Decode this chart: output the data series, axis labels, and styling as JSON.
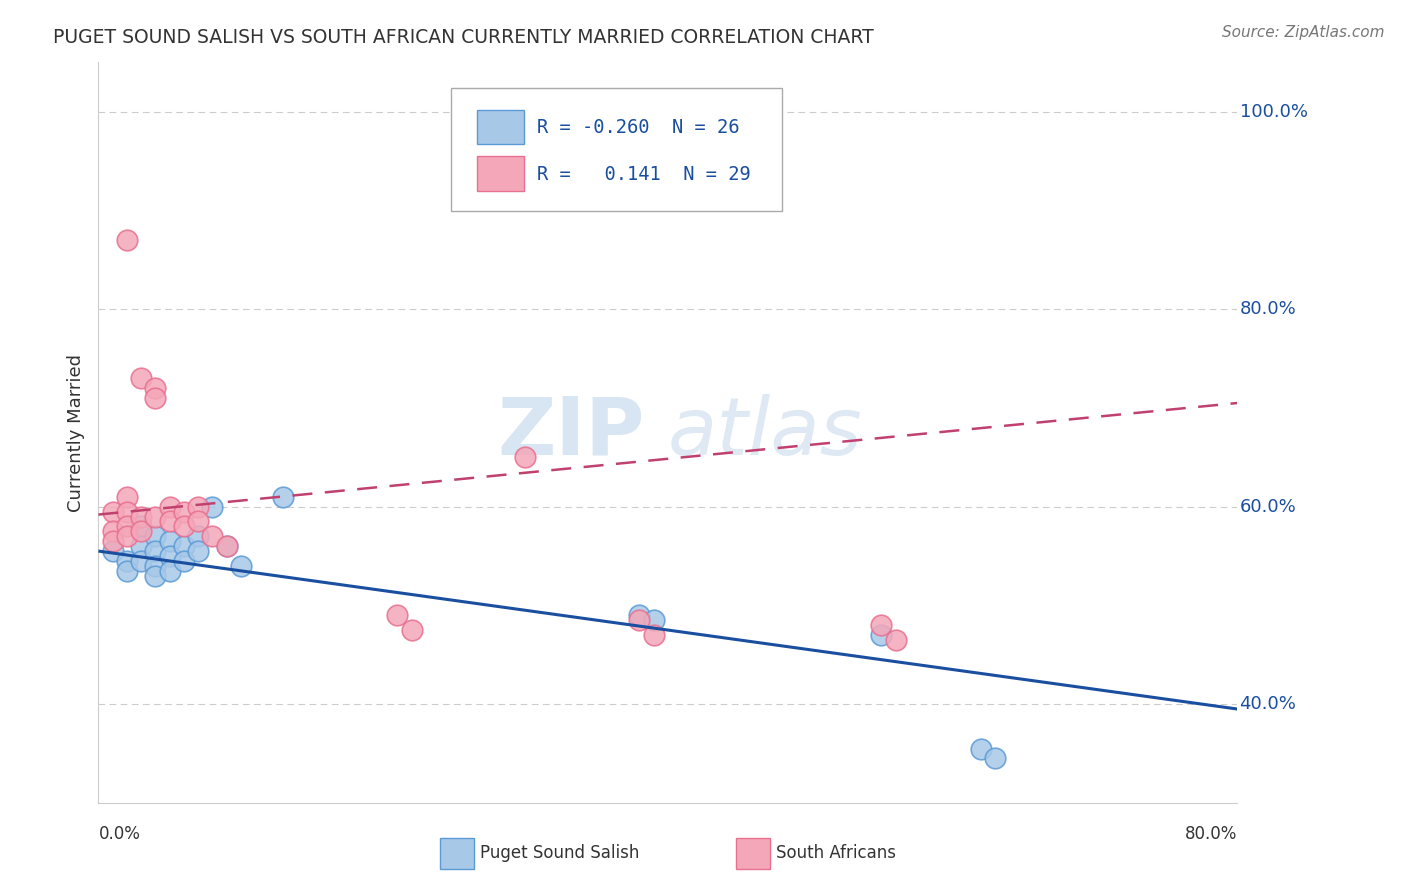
{
  "title": "PUGET SOUND SALISH VS SOUTH AFRICAN CURRENTLY MARRIED CORRELATION CHART",
  "source": "Source: ZipAtlas.com",
  "ylabel": "Currently Married",
  "watermark": "ZIPAtlas",
  "xlim": [
    0.0,
    0.8
  ],
  "ylim": [
    0.3,
    1.05
  ],
  "yticks": [
    0.4,
    0.6,
    0.8,
    1.0
  ],
  "ytick_labels": [
    "40.0%",
    "60.0%",
    "80.0%",
    "100.0%"
  ],
  "legend": {
    "blue_r": "-0.260",
    "blue_n": "26",
    "pink_r": "0.141",
    "pink_n": "29"
  },
  "blue_scatter": [
    [
      0.01,
      0.555
    ],
    [
      0.02,
      0.545
    ],
    [
      0.02,
      0.535
    ],
    [
      0.03,
      0.58
    ],
    [
      0.03,
      0.56
    ],
    [
      0.03,
      0.545
    ],
    [
      0.04,
      0.57
    ],
    [
      0.04,
      0.555
    ],
    [
      0.04,
      0.54
    ],
    [
      0.04,
      0.53
    ],
    [
      0.05,
      0.565
    ],
    [
      0.05,
      0.55
    ],
    [
      0.05,
      0.535
    ],
    [
      0.06,
      0.56
    ],
    [
      0.06,
      0.545
    ],
    [
      0.07,
      0.57
    ],
    [
      0.07,
      0.555
    ],
    [
      0.08,
      0.6
    ],
    [
      0.09,
      0.56
    ],
    [
      0.1,
      0.54
    ],
    [
      0.13,
      0.61
    ],
    [
      0.38,
      0.49
    ],
    [
      0.39,
      0.485
    ],
    [
      0.55,
      0.47
    ],
    [
      0.62,
      0.355
    ],
    [
      0.63,
      0.345
    ]
  ],
  "pink_scatter": [
    [
      0.01,
      0.595
    ],
    [
      0.01,
      0.575
    ],
    [
      0.01,
      0.565
    ],
    [
      0.02,
      0.61
    ],
    [
      0.02,
      0.595
    ],
    [
      0.02,
      0.58
    ],
    [
      0.02,
      0.57
    ],
    [
      0.03,
      0.59
    ],
    [
      0.03,
      0.575
    ],
    [
      0.03,
      0.73
    ],
    [
      0.04,
      0.72
    ],
    [
      0.04,
      0.71
    ],
    [
      0.04,
      0.59
    ],
    [
      0.05,
      0.6
    ],
    [
      0.05,
      0.585
    ],
    [
      0.06,
      0.595
    ],
    [
      0.06,
      0.58
    ],
    [
      0.07,
      0.6
    ],
    [
      0.07,
      0.585
    ],
    [
      0.08,
      0.57
    ],
    [
      0.09,
      0.56
    ],
    [
      0.21,
      0.49
    ],
    [
      0.22,
      0.475
    ],
    [
      0.38,
      0.485
    ],
    [
      0.39,
      0.47
    ],
    [
      0.55,
      0.48
    ],
    [
      0.56,
      0.465
    ],
    [
      0.02,
      0.87
    ],
    [
      0.3,
      0.65
    ]
  ],
  "blue_line_x": [
    0.0,
    0.8
  ],
  "blue_line_y": [
    0.555,
    0.395
  ],
  "pink_line_x": [
    0.0,
    0.8
  ],
  "pink_line_y": [
    0.592,
    0.705
  ],
  "blue_color": "#a8c8e8",
  "pink_color": "#f4a7b9",
  "blue_marker_edge": "#5b9bd5",
  "pink_marker_edge": "#e87090",
  "blue_line_color": "#1a4fa0",
  "pink_line_color": "#c04070",
  "background_color": "#ffffff",
  "grid_color": "#cccccc"
}
